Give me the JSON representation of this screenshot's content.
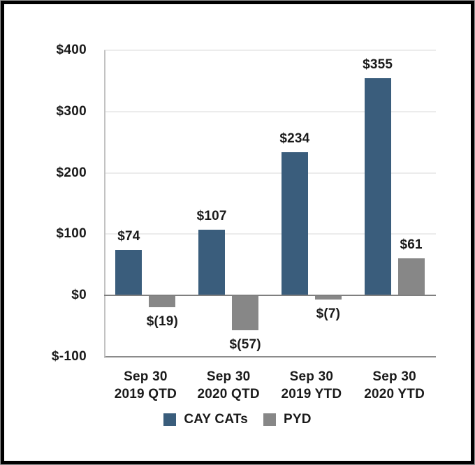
{
  "colors": {
    "background": "#FFFFFF",
    "frame": "#000000",
    "grid": "#ECECEC",
    "zero_line": "#7F7F7F",
    "axis_line": "#C2C2C2",
    "text": "#1A1A1A",
    "series_cay_cats": "#3A5D7C",
    "series_pyd": "#878787"
  },
  "chart_data": {
    "type": "bar",
    "title": "",
    "categories": [
      "Sep 30\n2019 QTD",
      "Sep 30\n2020 QTD",
      "Sep 30\n2019 YTD",
      "Sep 30\n2020 YTD"
    ],
    "series": [
      {
        "name": "CAY CATs",
        "color": "#3A5D7C",
        "values": [
          74,
          107,
          234,
          355
        ],
        "labels": [
          "$74",
          "$107",
          "$234",
          "$355"
        ]
      },
      {
        "name": "PYD",
        "color": "#878787",
        "values": [
          -19,
          -57,
          -7,
          61
        ],
        "labels": [
          "$(19)",
          "$(57)",
          "$(7)",
          "$61"
        ]
      }
    ],
    "y_axis": {
      "min": -100,
      "max": 400,
      "ticks": [
        400,
        300,
        200,
        100,
        0,
        -100
      ],
      "tick_labels": [
        "$400",
        "$300",
        "$200",
        "$100",
        "$0",
        "$-100"
      ]
    },
    "grid": true,
    "legend_position": "bottom"
  }
}
